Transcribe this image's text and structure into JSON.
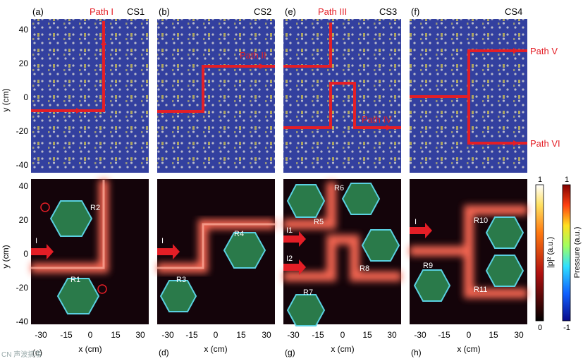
{
  "figure": {
    "colors": {
      "panel_blue": "#2f3fa8",
      "lattice_gray": "#b9bbc8",
      "path_red": "#e41e26",
      "field_dark": "#14040a",
      "field_glow": "#ff7a6a"
    },
    "top_panels": [
      {
        "id": "a",
        "label": "(a)",
        "cs": "CS1",
        "path_labels": [
          "Path I"
        ]
      },
      {
        "id": "b",
        "label": "(b)",
        "cs": "CS2",
        "path_labels": [
          "Path II"
        ]
      },
      {
        "id": "e",
        "label": "(e)",
        "cs": "CS3",
        "path_labels": [
          "Path III",
          "Path IV"
        ]
      },
      {
        "id": "f",
        "label": "(f)",
        "cs": "CS4",
        "path_labels": [
          "Path V",
          "Path VI"
        ]
      }
    ],
    "bottom_panels": [
      {
        "id": "c",
        "label": "(c)",
        "source_labels": [
          "I"
        ],
        "resonator_labels": [
          "R1",
          "R2"
        ]
      },
      {
        "id": "d",
        "label": "(d)",
        "source_labels": [
          "I"
        ],
        "resonator_labels": [
          "R3",
          "R4"
        ]
      },
      {
        "id": "g",
        "label": "(g)",
        "source_labels": [
          "I1",
          "I2"
        ],
        "resonator_labels": [
          "R5",
          "R6",
          "R7",
          "R8"
        ]
      },
      {
        "id": "h",
        "label": "(h)",
        "source_labels": [
          "I"
        ],
        "resonator_labels": [
          "R9",
          "R10",
          "R11"
        ]
      }
    ],
    "y_axis": {
      "label": "y (cm)",
      "ticks": [
        "40",
        "20",
        "0",
        "-20",
        "-40"
      ]
    },
    "x_axis": {
      "label": "x (cm)",
      "ticks": [
        "-30",
        "-15",
        "0",
        "15",
        "30"
      ]
    },
    "colorbars": [
      {
        "label": "|p|² (a.u.)",
        "max": "1",
        "min": "0"
      },
      {
        "label": "Pressure (a.u.)",
        "max": "1",
        "min": "-1"
      }
    ],
    "watermark": "CN 声波搞事"
  }
}
